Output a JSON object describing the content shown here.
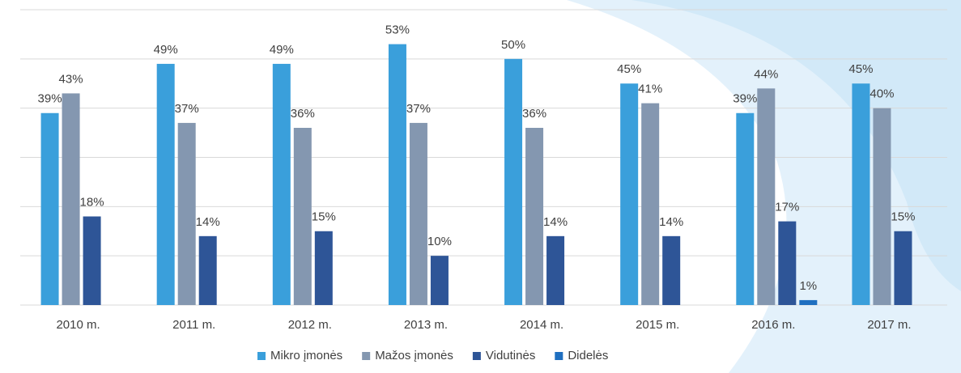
{
  "chart_data": {
    "type": "bar",
    "categories": [
      "2010 m.",
      "2011 m.",
      "2012 m.",
      "2013 m.",
      "2014 m.",
      "2015 m.",
      "2016 m.",
      "2017 m."
    ],
    "series": [
      {
        "name": "Mikro įmonės",
        "color": "#3a9fdb",
        "values": [
          39,
          49,
          49,
          53,
          50,
          45,
          39,
          45
        ],
        "value_labels": [
          "39%",
          "49%",
          "49%",
          "53%",
          "50%",
          "45%",
          "39%",
          "45%"
        ]
      },
      {
        "name": "Mažos įmonės",
        "color": "#8497b0",
        "values": [
          43,
          37,
          36,
          37,
          36,
          41,
          44,
          40
        ],
        "value_labels": [
          "43%",
          "37%",
          "36%",
          "37%",
          "36%",
          "41%",
          "44%",
          "40%"
        ]
      },
      {
        "name": "Vidutinės",
        "color": "#2e5597",
        "values": [
          18,
          14,
          15,
          10,
          14,
          14,
          17,
          15
        ],
        "value_labels": [
          "18%",
          "14%",
          "15%",
          "10%",
          "14%",
          "14%",
          "17%",
          "15%"
        ]
      },
      {
        "name": "Didelės",
        "color": "#1f6fc0",
        "values": [
          null,
          null,
          null,
          null,
          null,
          null,
          1,
          null
        ],
        "value_labels": [
          null,
          null,
          null,
          null,
          null,
          null,
          "1%",
          null
        ]
      }
    ],
    "ylim": [
      0,
      60
    ],
    "yticks": [
      0,
      10,
      20,
      30,
      40,
      50,
      60
    ],
    "grid": true,
    "legend": "bottom"
  }
}
